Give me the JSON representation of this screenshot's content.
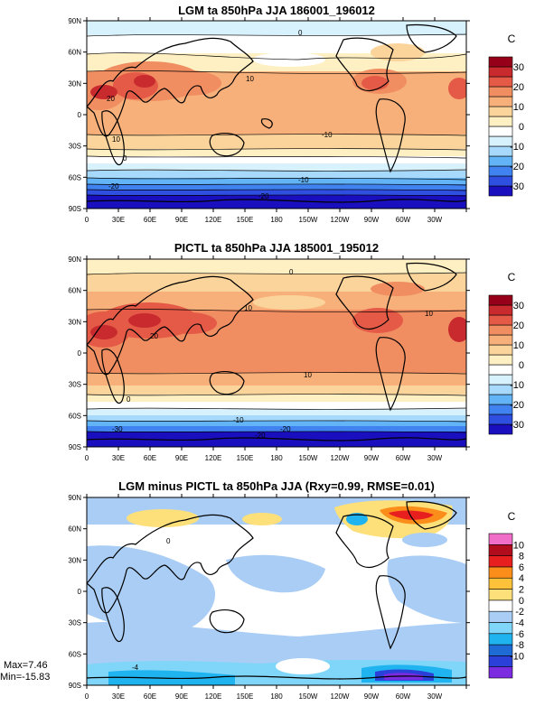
{
  "chart_data": [
    {
      "type": "heatmap",
      "title": "LGM ta 850hPa JJA 186001_196012",
      "colorbar_unit": "C",
      "colorbar_ticks": [
        "30",
        "20",
        "10",
        "0",
        "-10",
        "-20",
        "-30"
      ],
      "contour_labels": [
        "0",
        "10",
        "20",
        "10",
        "0",
        "-10",
        "-20",
        "-20",
        "-10"
      ],
      "colors": [
        "#1a0fbe",
        "#2f4fe0",
        "#3f82f0",
        "#62b4f7",
        "#a6d9fb",
        "#d7f1fd",
        "#ffffff",
        "#fff0c4",
        "#fbd49b",
        "#f8b07a",
        "#f08e62",
        "#e45a46",
        "#c92a2e",
        "#960019"
      ]
    },
    {
      "type": "heatmap",
      "title": "PICTL ta 850hPa JJA 185001_195012",
      "colorbar_unit": "C",
      "colorbar_ticks": [
        "30",
        "20",
        "10",
        "0",
        "-10",
        "-20",
        "-30"
      ],
      "contour_labels": [
        "0",
        "10",
        "20",
        "10",
        "10",
        "0",
        "-10",
        "-20",
        "-30",
        "-20"
      ],
      "colors": [
        "#1a0fbe",
        "#2f4fe0",
        "#3f82f0",
        "#62b4f7",
        "#a6d9fb",
        "#d7f1fd",
        "#ffffff",
        "#fff0c4",
        "#fbd49b",
        "#f8b07a",
        "#f08e62",
        "#e45a46",
        "#c92a2e",
        "#960019"
      ]
    },
    {
      "type": "heatmap",
      "title": "LGM minus PICTL ta 850hPa JJA (Rxy=0.99, RMSE=0.01)",
      "colorbar_unit": "C",
      "colorbar_ticks": [
        "10",
        "8",
        "6",
        "4",
        "2",
        "0",
        "-2",
        "-4",
        "-6",
        "-8",
        "-10"
      ],
      "contour_labels": [
        "0",
        "-4"
      ],
      "colors": [
        "#7b2be0",
        "#2a40d8",
        "#1f6bd6",
        "#1fb3f0",
        "#7fd6f8",
        "#a9cdf5",
        "#ffffff",
        "#fee07a",
        "#fdc13a",
        "#fb8e1a",
        "#e81f1f",
        "#b10d1d",
        "#f06ec8"
      ],
      "max_label": "Max=7.46",
      "min_label": "Min=-15.83"
    }
  ],
  "axes": {
    "xticks": [
      "0",
      "30E",
      "60E",
      "90E",
      "120E",
      "150E",
      "180",
      "150W",
      "120W",
      "90W",
      "60W",
      "30W"
    ],
    "yticks": [
      "90N",
      "60N",
      "30N",
      "0",
      "30S",
      "60S",
      "90S"
    ]
  }
}
